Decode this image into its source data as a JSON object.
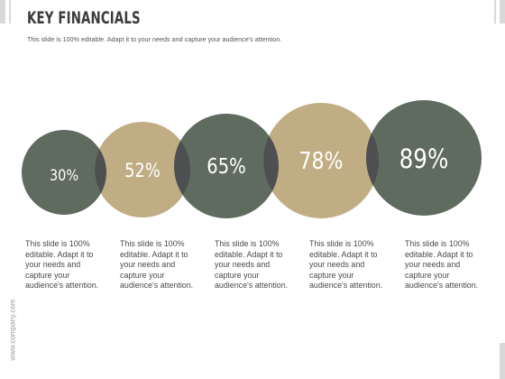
{
  "slide": {
    "title": "KEY FINANCIALS",
    "subtitle": "This slide is 100% editable. Adapt it to your needs and capture your audience's attention.",
    "footer_url": "www.company.com"
  },
  "colors": {
    "green": "#5e6b5e",
    "tan": "#c0ad84",
    "overlap": "#4d4f50",
    "title": "#3b3b3b",
    "corner_bars": "#d9d9d9"
  },
  "items": [
    {
      "value": "30%",
      "color": "green",
      "description": "This slide is 100% editable. Adapt it to your needs and capture your audience's attention."
    },
    {
      "value": "52%",
      "color": "tan",
      "description": "This slide is 100% editable. Adapt it to your needs and capture your audience's attention."
    },
    {
      "value": "65%",
      "color": "green",
      "description": "This slide is 100% editable. Adapt it to your needs and capture your audience's attention."
    },
    {
      "value": "78%",
      "color": "tan",
      "description": "This slide is 100% editable. Adapt it to your needs and capture your audience's attention."
    },
    {
      "value": "89%",
      "color": "green",
      "description": "This slide is 100% editable. Adapt it to your needs and capture your audience's attention."
    }
  ]
}
